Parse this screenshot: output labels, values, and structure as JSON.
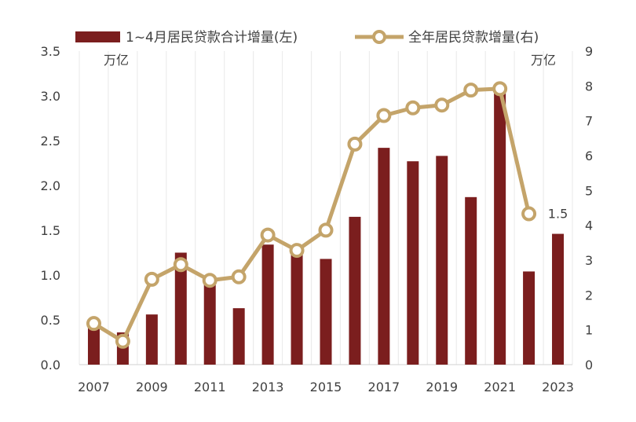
{
  "chart_data": {
    "type": "bar",
    "categories": [
      "2007",
      "2008",
      "2009",
      "2010",
      "2011",
      "2012",
      "2013",
      "2014",
      "2015",
      "2016",
      "2017",
      "2018",
      "2019",
      "2020",
      "2021",
      "2022",
      "2023"
    ],
    "x_tick_labels": [
      "2007",
      "2009",
      "2011",
      "2013",
      "2015",
      "2017",
      "2019",
      "2021",
      "2023"
    ],
    "series": [
      {
        "name": "1~4月居民贷款合计增量(左)",
        "type": "bar",
        "axis": "left",
        "color": "#7b1e1e",
        "values": [
          0.43,
          0.36,
          0.56,
          1.25,
          0.9,
          0.63,
          1.34,
          1.3,
          1.18,
          1.65,
          2.42,
          2.27,
          2.33,
          1.87,
          3.03,
          1.04,
          1.46
        ]
      },
      {
        "name": "全年居民贷款增量(右)",
        "type": "line",
        "axis": "right",
        "color": "#c4a46a",
        "values": [
          1.18,
          0.67,
          2.45,
          2.87,
          2.42,
          2.52,
          3.72,
          3.28,
          3.86,
          6.33,
          7.15,
          7.37,
          7.45,
          7.88,
          7.92,
          4.33,
          null
        ]
      }
    ],
    "y_left": {
      "unit": "万亿",
      "ylim": [
        0,
        3.5
      ],
      "ticks": [
        "0.0",
        "0.5",
        "1.0",
        "1.5",
        "2.0",
        "2.5",
        "3.0",
        "3.5"
      ]
    },
    "y_right": {
      "unit": "万亿",
      "ylim": [
        0,
        9
      ],
      "ticks": [
        "0",
        "1",
        "2",
        "3",
        "4",
        "5",
        "6",
        "7",
        "8",
        "9"
      ]
    },
    "annotations": [
      {
        "text": "1.5",
        "category": "2023"
      }
    ],
    "grid": "vertical",
    "legend_position": "top"
  }
}
